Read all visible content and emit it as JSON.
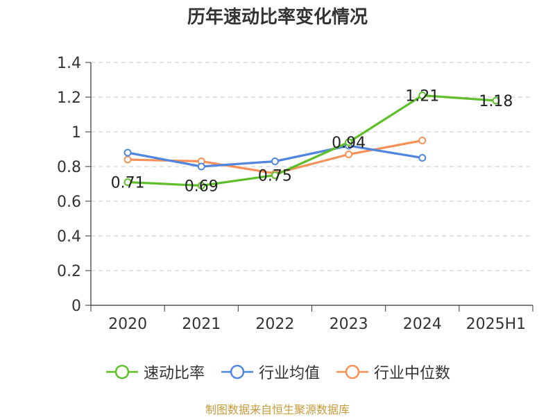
{
  "chart_data": {
    "type": "line",
    "title": "历年速动比率变化情况",
    "categories": [
      "2020",
      "2021",
      "2022",
      "2023",
      "2024",
      "2025H1"
    ],
    "ylim": [
      0,
      1.4
    ],
    "yticks": [
      "0",
      "0.2",
      "0.4",
      "0.6",
      "0.8",
      "1",
      "1.2",
      "1.4"
    ],
    "grid": true,
    "legend_position": "bottom",
    "series": [
      {
        "name": "速动比率",
        "color": "#5fbf2a",
        "values": [
          0.71,
          0.69,
          0.75,
          0.94,
          1.21,
          1.18
        ],
        "labels": [
          "0.71",
          "0.69",
          "0.75",
          "0.94",
          "1.21",
          "1.18"
        ]
      },
      {
        "name": "行业均值",
        "color": "#5186e0",
        "values": [
          0.88,
          0.8,
          0.83,
          0.92,
          0.85,
          null
        ]
      },
      {
        "name": "行业中位数",
        "color": "#f79157",
        "values": [
          0.84,
          0.83,
          0.76,
          0.87,
          0.95,
          null
        ]
      }
    ]
  },
  "footer": {
    "source": "制图数据来自恒生聚源数据库"
  }
}
